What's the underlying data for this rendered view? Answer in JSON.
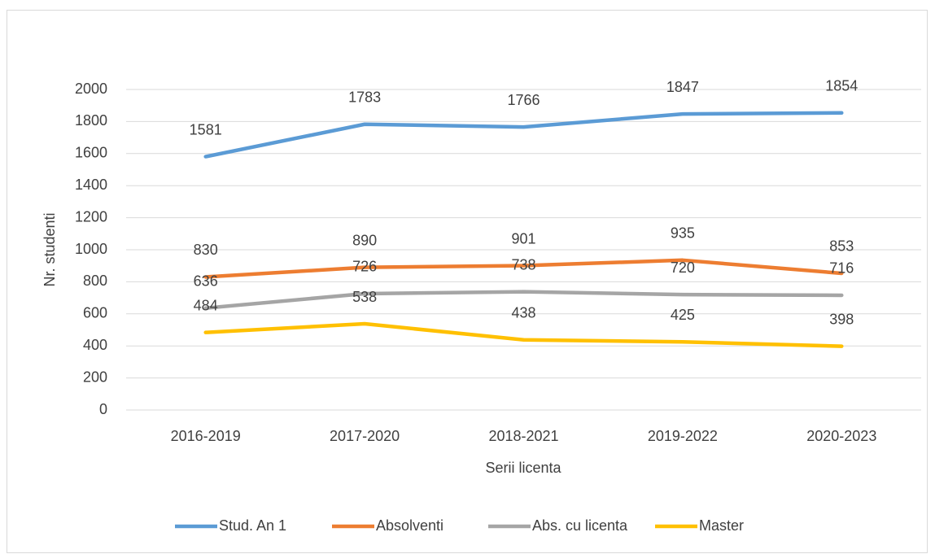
{
  "chart_data": {
    "type": "line",
    "x_label": "Serii licenta",
    "y_label": "Nr. studenti",
    "categories": [
      "2016-2019",
      "2017-2020",
      "2018-2021",
      "2019-2022",
      "2020-2023"
    ],
    "series": [
      {
        "name": "Stud. An 1",
        "color": "#5b9bd5",
        "values": [
          1581,
          1783,
          1766,
          1847,
          1854
        ]
      },
      {
        "name": "Absolventi",
        "color": "#ed7d31",
        "values": [
          830,
          890,
          901,
          935,
          853
        ]
      },
      {
        "name": "Abs. cu licenta",
        "color": "#a5a5a5",
        "values": [
          636,
          726,
          738,
          720,
          716
        ]
      },
      {
        "name": "Master",
        "color": "#ffc000",
        "values": [
          484,
          538,
          438,
          425,
          398
        ]
      }
    ],
    "ylim": [
      0,
      2000
    ],
    "yticks": [
      0,
      200,
      400,
      600,
      800,
      1000,
      1200,
      1400,
      1600,
      1800,
      2000
    ],
    "grid": true,
    "legend": "bottom"
  }
}
